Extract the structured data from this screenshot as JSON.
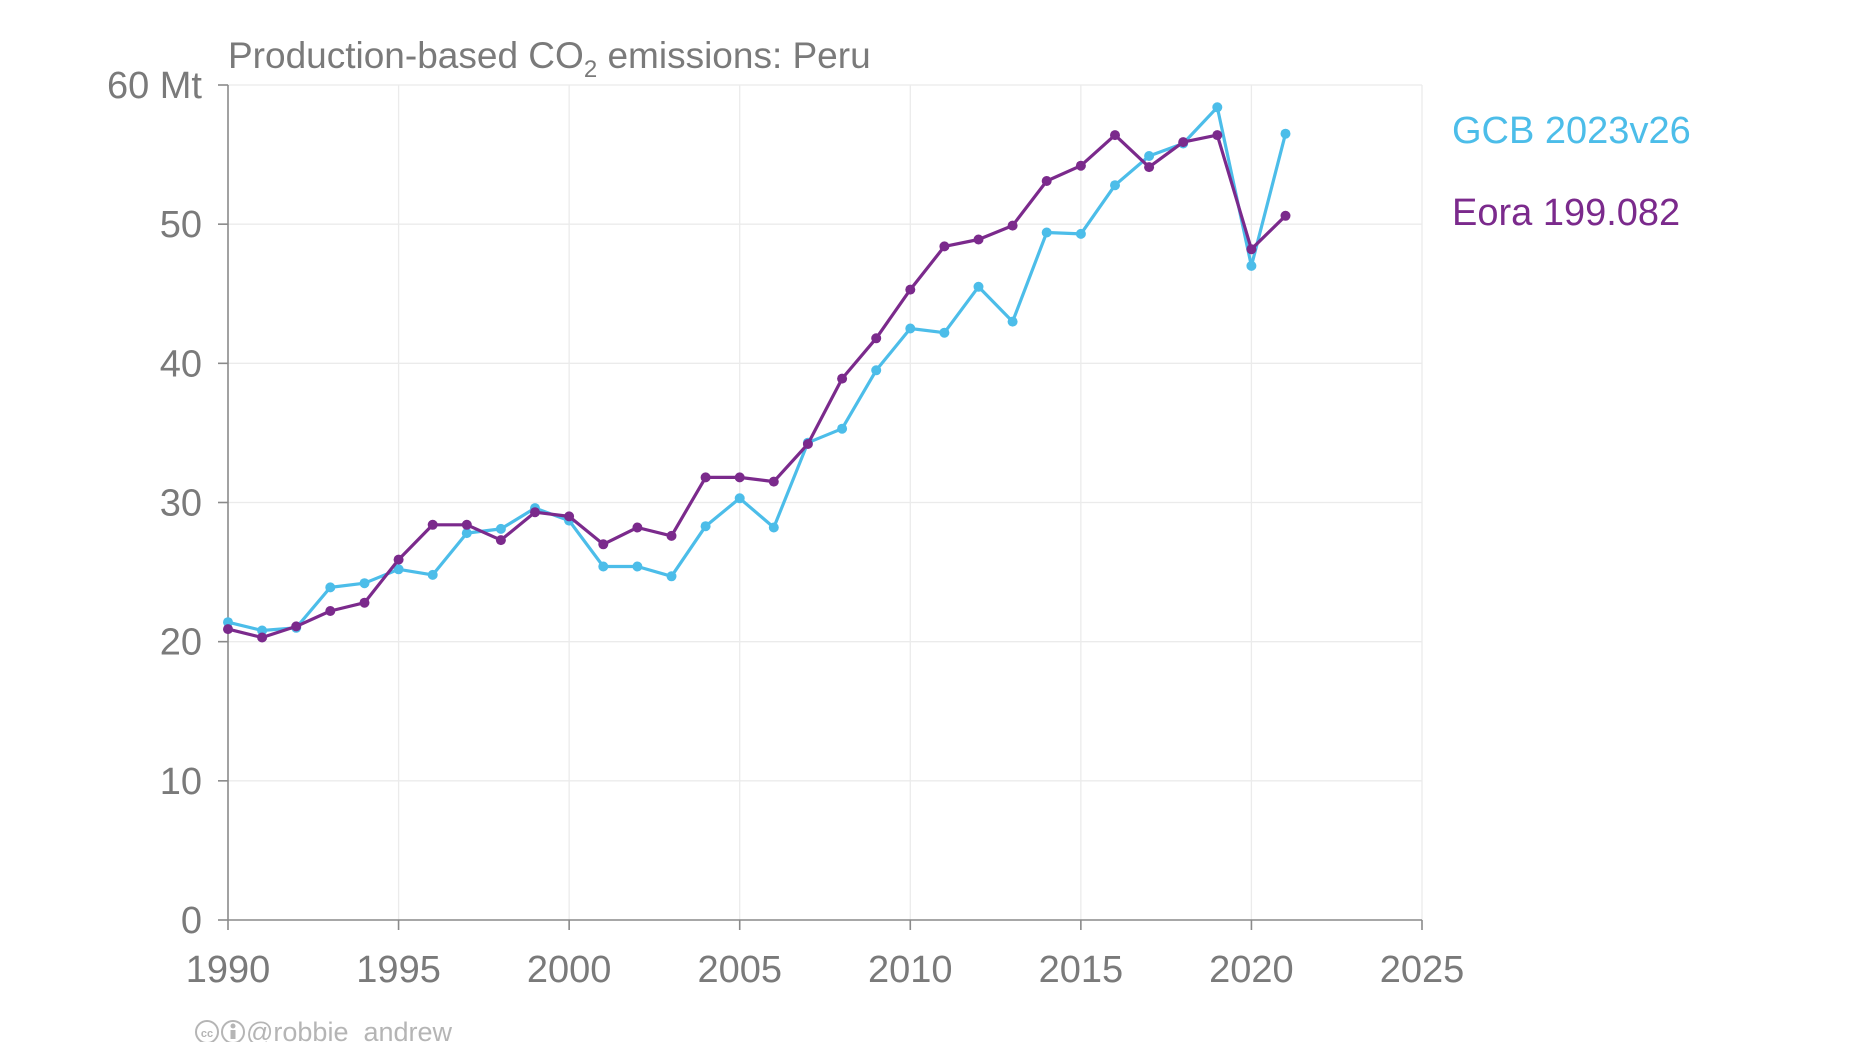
{
  "chart_data": {
    "type": "line",
    "title": {
      "prefix": "Production-based CO",
      "subscript": "2",
      "suffix": " emissions: Peru"
    },
    "xlim": [
      1990,
      2025
    ],
    "ylim": [
      0,
      60
    ],
    "x_ticks": [
      1990,
      1995,
      2000,
      2005,
      2010,
      2015,
      2020,
      2025
    ],
    "y_ticks": [
      0,
      10,
      20,
      30,
      40,
      50,
      60
    ],
    "y_tick_labels": [
      "0",
      "10",
      "20",
      "30",
      "40",
      "50",
      "60 Mt"
    ],
    "grid": true,
    "legend_position": "right",
    "x": [
      1990,
      1991,
      1992,
      1993,
      1994,
      1995,
      1996,
      1997,
      1998,
      1999,
      2000,
      2001,
      2002,
      2003,
      2004,
      2005,
      2006,
      2007,
      2008,
      2009,
      2010,
      2011,
      2012,
      2013,
      2014,
      2015,
      2016,
      2017,
      2018,
      2019,
      2020,
      2021
    ],
    "series": [
      {
        "name": "GCB 2023v26",
        "color": "#4cbde9",
        "values": [
          21.4,
          20.8,
          21.0,
          23.9,
          24.2,
          25.2,
          24.8,
          27.8,
          28.1,
          29.6,
          28.7,
          25.4,
          25.4,
          24.7,
          28.3,
          30.3,
          28.2,
          34.3,
          35.3,
          39.5,
          42.5,
          42.2,
          45.5,
          43.0,
          49.4,
          49.3,
          52.8,
          54.9,
          55.8,
          58.4,
          47.0,
          56.5
        ]
      },
      {
        "name": "Eora 199.082",
        "color": "#7b2a8c",
        "values": [
          20.9,
          20.3,
          21.1,
          22.2,
          22.8,
          25.9,
          28.4,
          28.4,
          27.3,
          29.3,
          29.0,
          27.0,
          28.2,
          27.6,
          31.8,
          31.8,
          31.5,
          34.2,
          38.9,
          41.8,
          45.3,
          48.4,
          48.9,
          49.9,
          53.1,
          54.2,
          56.4,
          54.1,
          55.9,
          56.4,
          48.2,
          50.6
        ]
      }
    ]
  },
  "credit": {
    "icon": "creative-commons-by-icon",
    "text": "@robbie_andrew"
  }
}
